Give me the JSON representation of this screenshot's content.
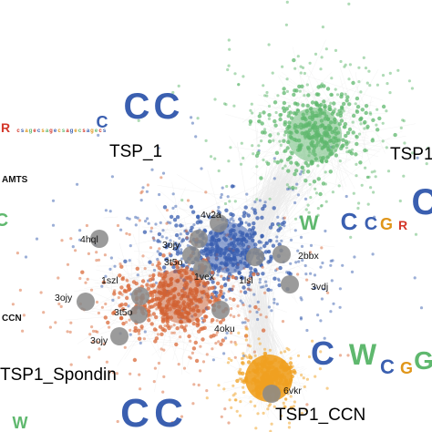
{
  "clusters": {
    "tsp1_a": {
      "label": "TSP_1",
      "color": "#3a5fb0"
    },
    "tsp1_b": {
      "label": "TSP1",
      "color": "#5fb86e"
    },
    "spondin": {
      "label": "TSP1_Spondin",
      "color": "#b35a1f"
    },
    "ccn": {
      "label": "TSP1_CCN",
      "color": "#e0961a"
    }
  },
  "side_labels": {
    "adamts": "AMTS",
    "ccn": "CCN"
  },
  "pdb_structures": [
    "4hql",
    "4v2a",
    "3ojy",
    "3t5o",
    "1vex",
    "1lsl",
    "2bbx",
    "1szl",
    "3vdj",
    "3ojy",
    "3t5o",
    "4oku",
    "3ojy",
    "6vkr"
  ],
  "colors": {
    "blue": "#3a5fb0",
    "green": "#5fb86e",
    "orange_red": "#d9693a",
    "orange": "#f0a020",
    "structure_node": "#8a8a8a",
    "edges": "#c8c8c8"
  },
  "logo_letters": {
    "top_left": [
      "R",
      "C",
      "C",
      "C"
    ],
    "right": [
      "W",
      "C",
      "C",
      "G",
      "R",
      "C"
    ],
    "ccn": [
      "C",
      "W",
      "C",
      "G",
      "G"
    ],
    "bottom": [
      "W",
      "C",
      "C"
    ]
  }
}
